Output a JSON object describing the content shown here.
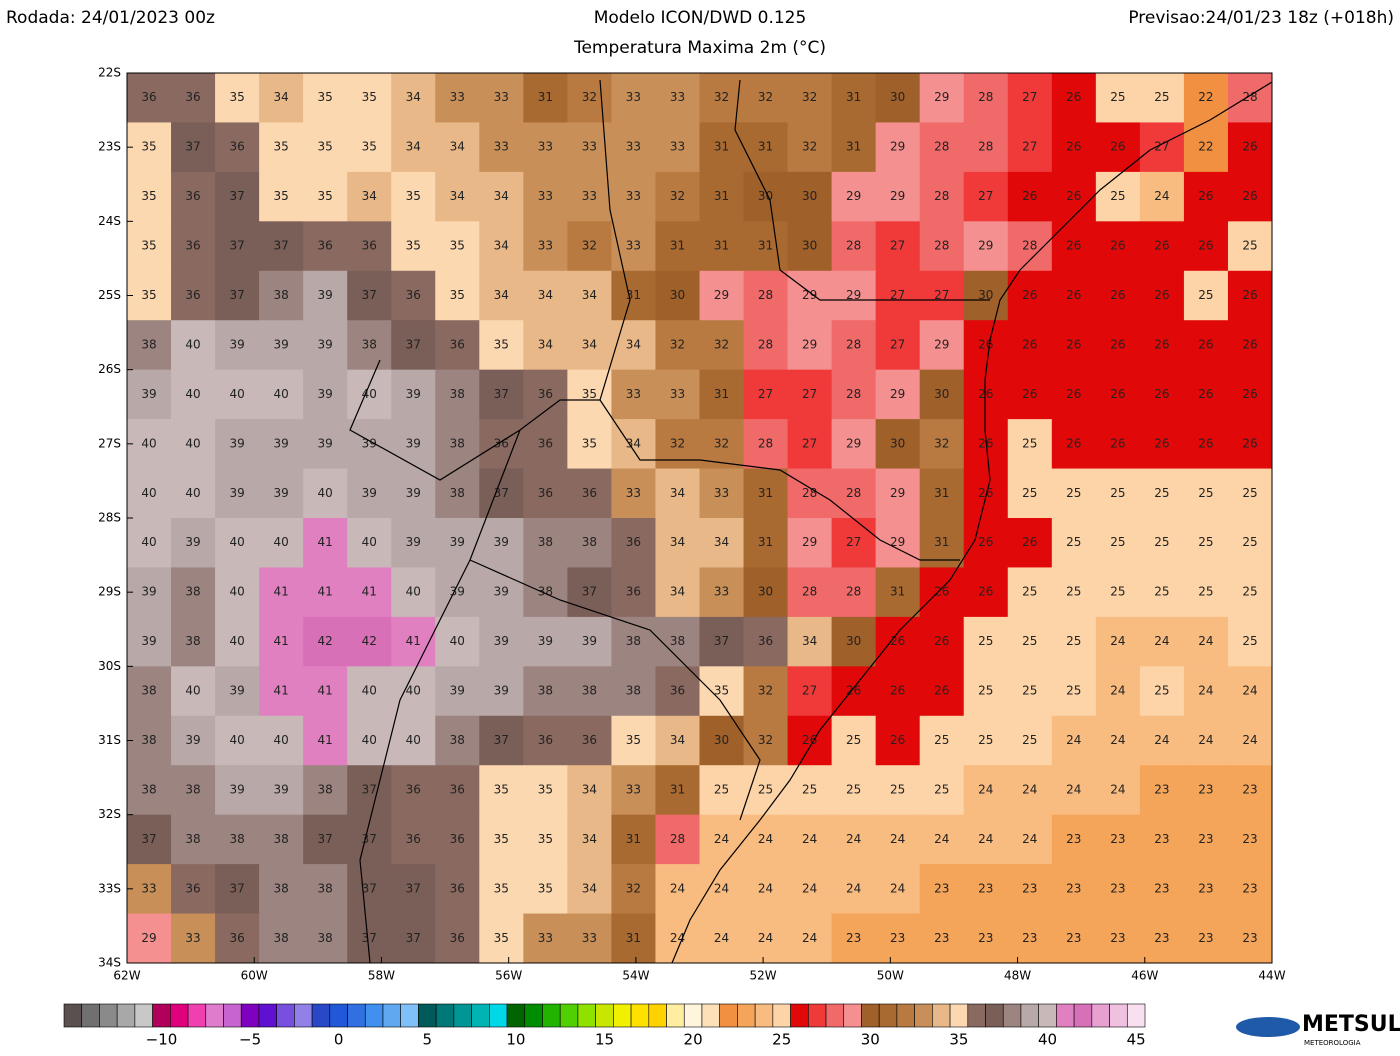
{
  "header": {
    "run": "Rodada: 24/01/2023 00z",
    "model": "Modelo ICON/DWD 0.125",
    "field": "Temperatura Maxima 2m (°C)",
    "forecast": "Previsao:24/01/23 18z (+018h)"
  },
  "map": {
    "lon_lim": [
      -62,
      -44
    ],
    "lat_lim": [
      -22,
      -34
    ],
    "lat_ticks": [
      {
        "value": -22,
        "label": "22S"
      },
      {
        "value": -23,
        "label": "23S"
      },
      {
        "value": -24,
        "label": "24S"
      },
      {
        "value": -25,
        "label": "25S"
      },
      {
        "value": -26,
        "label": "26S"
      },
      {
        "value": -27,
        "label": "27S"
      },
      {
        "value": -28,
        "label": "28S"
      },
      {
        "value": -29,
        "label": "29S"
      },
      {
        "value": -30,
        "label": "30S"
      },
      {
        "value": -31,
        "label": "31S"
      },
      {
        "value": -32,
        "label": "32S"
      },
      {
        "value": -33,
        "label": "33S"
      },
      {
        "value": -34,
        "label": "34S"
      }
    ],
    "lon_ticks": [
      {
        "value": -62,
        "label": "62W"
      },
      {
        "value": -60,
        "label": "60W"
      },
      {
        "value": -58,
        "label": "58W"
      },
      {
        "value": -56,
        "label": "56W"
      },
      {
        "value": -54,
        "label": "54W"
      },
      {
        "value": -52,
        "label": "52W"
      },
      {
        "value": -50,
        "label": "50W"
      },
      {
        "value": -48,
        "label": "48W"
      },
      {
        "value": -46,
        "label": "46W"
      },
      {
        "value": -44,
        "label": "44W"
      }
    ],
    "grid": [
      [
        36,
        36,
        35,
        34,
        35,
        35,
        34,
        33,
        33,
        31,
        32,
        33,
        33,
        32,
        32,
        32,
        31,
        30,
        29,
        28,
        27,
        26,
        25,
        25,
        22,
        28
      ],
      [
        35,
        37,
        36,
        35,
        35,
        35,
        34,
        34,
        33,
        33,
        33,
        33,
        33,
        31,
        31,
        32,
        31,
        29,
        28,
        28,
        27,
        26,
        26,
        27,
        22,
        26
      ],
      [
        35,
        36,
        37,
        35,
        35,
        34,
        35,
        34,
        34,
        33,
        33,
        33,
        32,
        31,
        30,
        30,
        29,
        29,
        28,
        27,
        26,
        26,
        25,
        24,
        26,
        26
      ],
      [
        35,
        36,
        37,
        37,
        36,
        36,
        35,
        35,
        34,
        33,
        32,
        33,
        31,
        31,
        31,
        30,
        28,
        27,
        28,
        29,
        28,
        26,
        26,
        26,
        26,
        25
      ],
      [
        35,
        36,
        37,
        38,
        39,
        37,
        36,
        35,
        34,
        34,
        34,
        31,
        30,
        29,
        28,
        29,
        29,
        27,
        27,
        30,
        26,
        26,
        26,
        26,
        25,
        26
      ],
      [
        38,
        40,
        39,
        39,
        39,
        38,
        37,
        36,
        35,
        34,
        34,
        34,
        32,
        32,
        28,
        29,
        28,
        27,
        29,
        26,
        26,
        26,
        26,
        26,
        26,
        26
      ],
      [
        39,
        40,
        40,
        40,
        39,
        40,
        39,
        38,
        37,
        36,
        35,
        33,
        33,
        31,
        27,
        27,
        28,
        29,
        30,
        26,
        26,
        26,
        26,
        26,
        26,
        26
      ],
      [
        40,
        40,
        39,
        39,
        39,
        39,
        39,
        38,
        36,
        36,
        35,
        34,
        32,
        32,
        28,
        27,
        29,
        30,
        32,
        26,
        25,
        26,
        26,
        26,
        26,
        26
      ],
      [
        40,
        40,
        39,
        39,
        40,
        39,
        39,
        38,
        37,
        36,
        36,
        33,
        34,
        33,
        31,
        28,
        28,
        29,
        31,
        26,
        25,
        25,
        25,
        25,
        25,
        25
      ],
      [
        40,
        39,
        40,
        40,
        41,
        40,
        39,
        39,
        39,
        38,
        38,
        36,
        34,
        34,
        31,
        29,
        27,
        29,
        31,
        26,
        26,
        25,
        25,
        25,
        25,
        25
      ],
      [
        39,
        38,
        40,
        41,
        41,
        41,
        40,
        39,
        39,
        38,
        37,
        36,
        34,
        33,
        30,
        28,
        28,
        31,
        26,
        26,
        25,
        25,
        25,
        25,
        25,
        25
      ],
      [
        39,
        38,
        40,
        41,
        42,
        42,
        41,
        40,
        39,
        39,
        39,
        38,
        38,
        37,
        36,
        34,
        30,
        26,
        26,
        25,
        25,
        25,
        24,
        24,
        24,
        25
      ],
      [
        38,
        40,
        39,
        41,
        41,
        40,
        40,
        39,
        39,
        38,
        38,
        38,
        36,
        35,
        32,
        27,
        26,
        26,
        26,
        25,
        25,
        25,
        24,
        25,
        24,
        24
      ],
      [
        38,
        39,
        40,
        40,
        41,
        40,
        40,
        38,
        37,
        36,
        36,
        35,
        34,
        30,
        32,
        26,
        25,
        26,
        25,
        25,
        25,
        24,
        24,
        24,
        24,
        24
      ],
      [
        38,
        38,
        39,
        39,
        38,
        37,
        36,
        36,
        35,
        35,
        34,
        33,
        31,
        25,
        25,
        25,
        25,
        25,
        25,
        24,
        24,
        24,
        24,
        23,
        23,
        23
      ],
      [
        37,
        38,
        38,
        38,
        37,
        37,
        36,
        36,
        35,
        35,
        34,
        31,
        28,
        24,
        24,
        24,
        24,
        24,
        24,
        24,
        24,
        23,
        23,
        23,
        23,
        23
      ],
      [
        33,
        36,
        37,
        38,
        38,
        37,
        37,
        36,
        35,
        35,
        34,
        32,
        24,
        24,
        24,
        24,
        24,
        24,
        23,
        23,
        23,
        23,
        23,
        23,
        23,
        23
      ],
      [
        29,
        33,
        36,
        38,
        38,
        37,
        37,
        36,
        35,
        33,
        33,
        31,
        24,
        24,
        24,
        24,
        23,
        23,
        23,
        23,
        23,
        23,
        23,
        23,
        23,
        23
      ]
    ]
  },
  "colorbar": {
    "lim": [
      -15,
      46
    ],
    "ticks": [
      {
        "value": -10,
        "label": "−10"
      },
      {
        "value": -5,
        "label": "−5"
      },
      0,
      5,
      10,
      15,
      20,
      25,
      30,
      35,
      40,
      45
    ],
    "colors": [
      "#5a5050",
      "#707070",
      "#8a8a8a",
      "#a8a8a8",
      "#c8c8c8",
      "#b0005a",
      "#e0007e",
      "#f040b0",
      "#e07ccc",
      "#c864d0",
      "#8000c0",
      "#6010d0",
      "#7850e0",
      "#9080e8",
      "#2848c8",
      "#2058d8",
      "#3070e0",
      "#4090f0",
      "#60a8f0",
      "#80c0f8",
      "#005a5a",
      "#007878",
      "#009696",
      "#00b4b4",
      "#00d8e8",
      "#006400",
      "#008c00",
      "#20b400",
      "#50d000",
      "#90e000",
      "#c8e600",
      "#f0f000",
      "#ffe100",
      "#ffd200",
      "#ffeea0",
      "#fff5dc",
      "#fde0b8",
      "#f09040",
      "#f5a55a",
      "#f8bb80",
      "#fcd4a8",
      "#e00808",
      "#f03a3a",
      "#f06a6a",
      "#f59090",
      "#a0602a",
      "#a86a30",
      "#b87a40",
      "#c89058",
      "#e8b888",
      "#fcd8b0",
      "#8a6a60",
      "#7a5e58",
      "#9c8480",
      "#b8a8a8",
      "#c8b8b8",
      "#e080c0",
      "#d870b8",
      "#e8a0d0",
      "#f0c0e0",
      "#f8e0f0"
    ]
  },
  "logo": {
    "name": "METSUL",
    "sub": "METEOROLOGIA"
  }
}
